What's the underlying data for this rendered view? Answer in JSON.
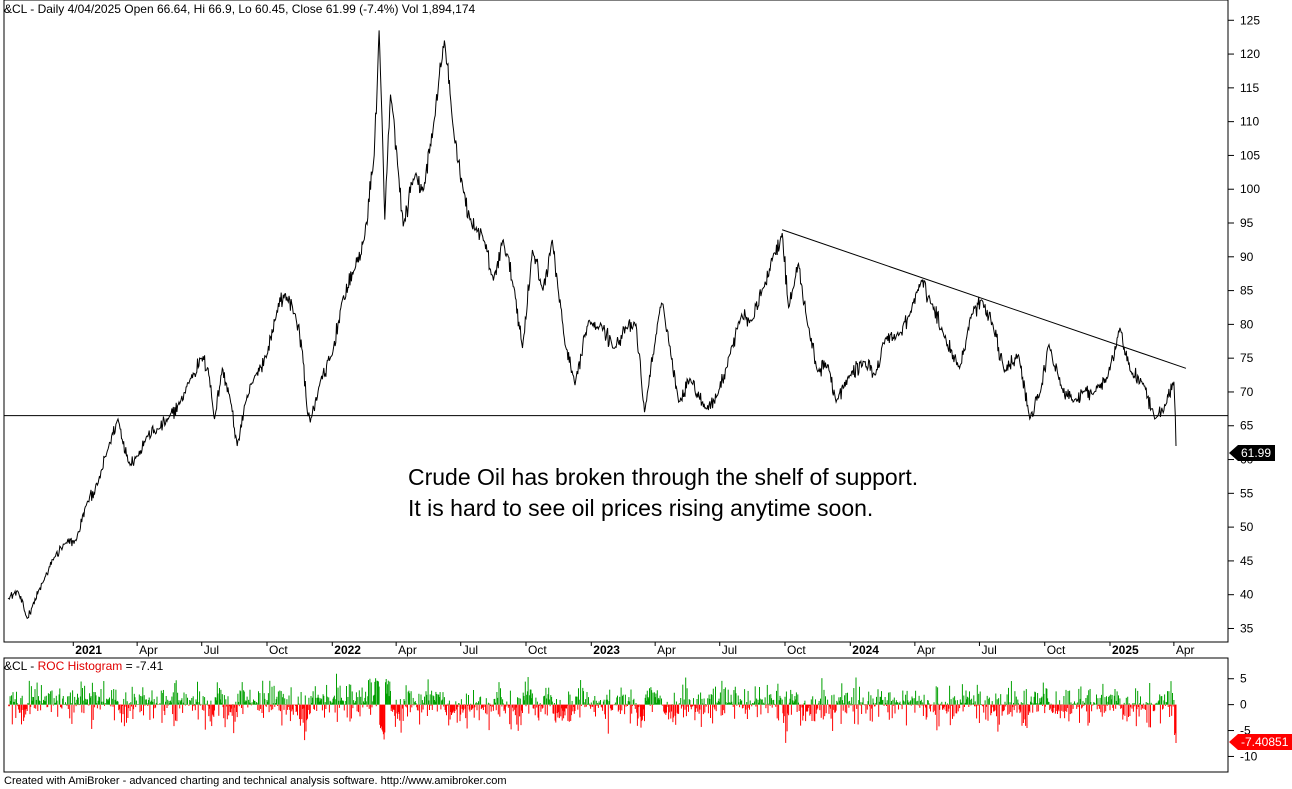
{
  "header": {
    "title": "&CL - Daily 4/04/2025 Open 66.64, Hi 66.9, Lo 60.45, Close 61.99 (-7.4%) Vol 1,894,174"
  },
  "annotation": {
    "line1": "Crude Oil has broken through the shelf of support.",
    "line2": "It is hard to see oil prices rising anytime soon."
  },
  "footer": {
    "text": "Created with AmiBroker - advanced charting and technical analysis software. http://www.amibroker.com"
  },
  "indicator": {
    "prefix": "&CL - ",
    "name": "ROC Histogram",
    "suffix": " = -7.41"
  },
  "colors": {
    "price_line": "#000000",
    "roc_positive": "#00a000",
    "roc_negative": "#ff0000"
  },
  "chart_data": [
    {
      "type": "line",
      "name": "price",
      "x_start": "2020-10-01",
      "x_end": "2025-04-04",
      "ylim": [
        33,
        128
      ],
      "y_ticks": [
        35,
        40,
        45,
        50,
        55,
        60,
        65,
        70,
        75,
        80,
        85,
        90,
        95,
        100,
        105,
        110,
        115,
        120,
        125
      ],
      "x_tick_labels": [
        {
          "date": "2021-01-01",
          "label": "2021",
          "bold": true
        },
        {
          "date": "2021-04-01",
          "label": "Apr"
        },
        {
          "date": "2021-07-01",
          "label": "Jul"
        },
        {
          "date": "2021-10-01",
          "label": "Oct"
        },
        {
          "date": "2022-01-01",
          "label": "2022",
          "bold": true
        },
        {
          "date": "2022-04-01",
          "label": "Apr"
        },
        {
          "date": "2022-07-01",
          "label": "Jul"
        },
        {
          "date": "2022-10-01",
          "label": "Oct"
        },
        {
          "date": "2023-01-01",
          "label": "2023",
          "bold": true
        },
        {
          "date": "2023-04-01",
          "label": "Apr"
        },
        {
          "date": "2023-07-01",
          "label": "Jul"
        },
        {
          "date": "2023-10-01",
          "label": "Oct"
        },
        {
          "date": "2024-01-01",
          "label": "2024",
          "bold": true
        },
        {
          "date": "2024-04-01",
          "label": "Apr"
        },
        {
          "date": "2024-07-01",
          "label": "Jul"
        },
        {
          "date": "2024-10-01",
          "label": "Oct"
        },
        {
          "date": "2025-01-01",
          "label": "2025",
          "bold": true
        },
        {
          "date": "2025-04-01",
          "label": "Apr"
        }
      ],
      "points": [
        [
          "2020-10-01",
          39.5
        ],
        [
          "2020-10-15",
          40.5
        ],
        [
          "2020-10-28",
          36.5
        ],
        [
          "2020-11-05",
          38.5
        ],
        [
          "2020-11-20",
          42.0
        ],
        [
          "2020-12-05",
          45.5
        ],
        [
          "2020-12-20",
          47.5
        ],
        [
          "2021-01-05",
          48.0
        ],
        [
          "2021-01-20",
          53.5
        ],
        [
          "2021-02-05",
          56.5
        ],
        [
          "2021-02-20",
          62.0
        ],
        [
          "2021-03-05",
          66.0
        ],
        [
          "2021-03-20",
          59.5
        ],
        [
          "2021-04-01",
          60.5
        ],
        [
          "2021-04-15",
          63.5
        ],
        [
          "2021-05-01",
          64.5
        ],
        [
          "2021-05-15",
          66.0
        ],
        [
          "2021-06-01",
          68.5
        ],
        [
          "2021-06-15",
          72.0
        ],
        [
          "2021-07-01",
          75.0
        ],
        [
          "2021-07-10",
          73.5
        ],
        [
          "2021-07-19",
          66.0
        ],
        [
          "2021-07-30",
          73.5
        ],
        [
          "2021-08-10",
          69.0
        ],
        [
          "2021-08-20",
          62.0
        ],
        [
          "2021-09-01",
          68.5
        ],
        [
          "2021-09-15",
          72.5
        ],
        [
          "2021-10-01",
          75.5
        ],
        [
          "2021-10-15",
          82.0
        ],
        [
          "2021-10-26",
          84.5
        ],
        [
          "2021-11-10",
          81.5
        ],
        [
          "2021-11-20",
          76.0
        ],
        [
          "2021-11-26",
          68.0
        ],
        [
          "2021-12-01",
          65.5
        ],
        [
          "2021-12-15",
          71.5
        ],
        [
          "2022-01-01",
          75.5
        ],
        [
          "2022-01-15",
          83.5
        ],
        [
          "2022-02-01",
          88.0
        ],
        [
          "2022-02-15",
          92.5
        ],
        [
          "2022-03-01",
          105.0
        ],
        [
          "2022-03-08",
          123.5
        ],
        [
          "2022-03-16",
          95.5
        ],
        [
          "2022-03-24",
          114.0
        ],
        [
          "2022-04-05",
          101.5
        ],
        [
          "2022-04-11",
          94.5
        ],
        [
          "2022-04-25",
          101.5
        ],
        [
          "2022-05-10",
          100.0
        ],
        [
          "2022-05-25",
          110.5
        ],
        [
          "2022-06-08",
          122.0
        ],
        [
          "2022-06-20",
          109.5
        ],
        [
          "2022-07-05",
          99.5
        ],
        [
          "2022-07-14",
          95.5
        ],
        [
          "2022-08-01",
          93.0
        ],
        [
          "2022-08-16",
          86.5
        ],
        [
          "2022-08-30",
          92.5
        ],
        [
          "2022-09-15",
          85.0
        ],
        [
          "2022-09-26",
          76.5
        ],
        [
          "2022-10-10",
          91.0
        ],
        [
          "2022-10-25",
          85.0
        ],
        [
          "2022-11-07",
          92.5
        ],
        [
          "2022-11-25",
          77.0
        ],
        [
          "2022-12-09",
          71.0
        ],
        [
          "2022-12-28",
          80.5
        ],
        [
          "2023-01-15",
          80.0
        ],
        [
          "2023-02-01",
          76.5
        ],
        [
          "2023-02-20",
          79.5
        ],
        [
          "2023-03-05",
          80.0
        ],
        [
          "2023-03-17",
          67.0
        ],
        [
          "2023-04-05",
          80.5
        ],
        [
          "2023-04-12",
          83.0
        ],
        [
          "2023-05-04",
          68.5
        ],
        [
          "2023-05-20",
          72.0
        ],
        [
          "2023-06-12",
          67.5
        ],
        [
          "2023-06-28",
          69.5
        ],
        [
          "2023-07-15",
          75.5
        ],
        [
          "2023-08-01",
          81.5
        ],
        [
          "2023-08-15",
          80.5
        ],
        [
          "2023-09-01",
          85.5
        ],
        [
          "2023-09-15",
          90.5
        ],
        [
          "2023-09-27",
          93.5
        ],
        [
          "2023-10-06",
          82.5
        ],
        [
          "2023-10-20",
          89.0
        ],
        [
          "2023-11-01",
          80.5
        ],
        [
          "2023-11-16",
          73.0
        ],
        [
          "2023-12-01",
          74.0
        ],
        [
          "2023-12-12",
          68.5
        ],
        [
          "2024-01-01",
          72.5
        ],
        [
          "2024-01-20",
          74.5
        ],
        [
          "2024-02-05",
          72.5
        ],
        [
          "2024-02-20",
          78.0
        ],
        [
          "2024-03-10",
          78.5
        ],
        [
          "2024-03-25",
          81.5
        ],
        [
          "2024-04-10",
          86.5
        ],
        [
          "2024-04-25",
          83.0
        ],
        [
          "2024-05-10",
          79.0
        ],
        [
          "2024-06-03",
          73.5
        ],
        [
          "2024-06-20",
          81.5
        ],
        [
          "2024-07-05",
          83.5
        ],
        [
          "2024-07-20",
          80.0
        ],
        [
          "2024-08-05",
          73.0
        ],
        [
          "2024-08-25",
          75.5
        ],
        [
          "2024-09-10",
          66.0
        ],
        [
          "2024-09-25",
          70.0
        ],
        [
          "2024-10-07",
          77.0
        ],
        [
          "2024-10-25",
          70.5
        ],
        [
          "2024-11-10",
          68.5
        ],
        [
          "2024-11-25",
          70.0
        ],
        [
          "2024-12-10",
          70.0
        ],
        [
          "2024-12-28",
          72.0
        ],
        [
          "2025-01-15",
          79.5
        ],
        [
          "2025-01-30",
          73.0
        ],
        [
          "2025-02-15",
          71.5
        ],
        [
          "2025-03-05",
          66.0
        ],
        [
          "2025-03-20",
          68.0
        ],
        [
          "2025-04-01",
          71.5
        ],
        [
          "2025-04-03",
          66.5
        ],
        [
          "2025-04-04",
          62.0
        ]
      ],
      "support_line": {
        "value": 66.5
      },
      "trend_line": {
        "start": [
          "2023-09-27",
          94.0
        ],
        "end": [
          "2025-04-18",
          73.5
        ]
      },
      "last_value_label": "61.99"
    },
    {
      "type": "bar",
      "name": "ROC Histogram",
      "ylim": [
        -13,
        9
      ],
      "y_ticks": [
        5,
        0,
        -5,
        -10
      ],
      "y_tick_labels": [
        "5",
        "0",
        "-5",
        "-10"
      ],
      "last_value_label": "-7.40851"
    }
  ]
}
